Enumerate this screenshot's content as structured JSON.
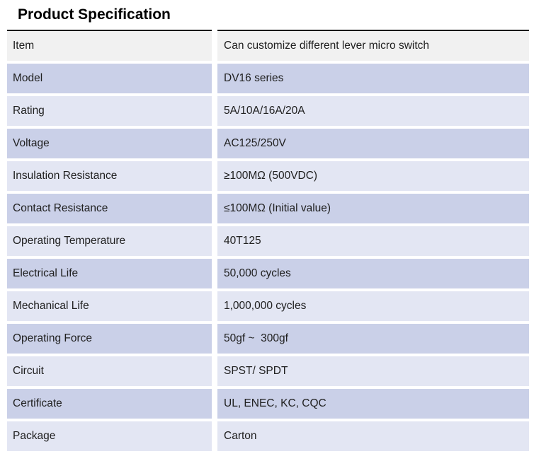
{
  "title": "Product Specification",
  "colors": {
    "row_gray": "#f1f1f1",
    "row_dark_lavender": "#cad0e8",
    "row_light_lavender": "#e3e6f3",
    "table_border": "#000000",
    "text": "#202020",
    "background": "#ffffff"
  },
  "table": {
    "rows": [
      {
        "label": "Item",
        "value": "Can customize different lever micro switch"
      },
      {
        "label": "Model",
        "value": "DV16 series"
      },
      {
        "label": "Rating",
        "value": "5A/10A/16A/20A"
      },
      {
        "label": "Voltage",
        "value": "AC125/250V"
      },
      {
        "label": "Insulation Resistance",
        "value": "≥100MΩ (500VDC)"
      },
      {
        "label": "Contact Resistance",
        "value": "≤100MΩ (Initial value)"
      },
      {
        "label": "Operating Temperature",
        "value": "40T125"
      },
      {
        "label": "Electrical Life",
        "value": "50,000 cycles"
      },
      {
        "label": "Mechanical Life",
        "value": "1,000,000 cycles"
      },
      {
        "label": "Operating Force",
        "value": "50gf ~  300gf"
      },
      {
        "label": "Circuit",
        "value": "SPST/ SPDT"
      },
      {
        "label": "Certificate",
        "value": "UL, ENEC, KC, CQC"
      },
      {
        "label": "Package",
        "value": "Carton"
      }
    ]
  }
}
